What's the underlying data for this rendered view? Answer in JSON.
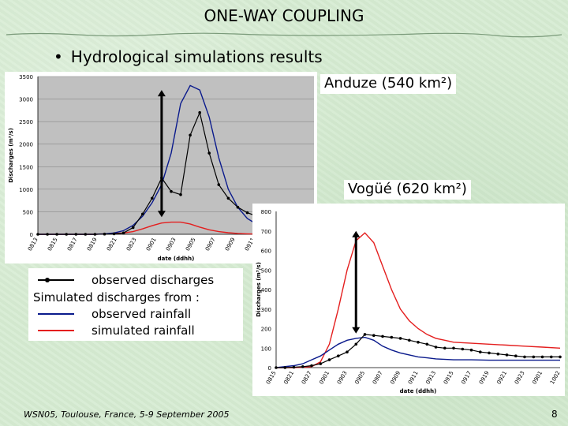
{
  "slide": {
    "title": "ONE-WAY COUPLING",
    "bullet": "Hydrological simulations results",
    "footer": "WSN05, Toulouse, France, 5-9 September 2005",
    "page_number": "8"
  },
  "legend": {
    "observed": "observed discharges",
    "header": "Simulated discharges from :",
    "obs_rainfall": "observed rainfall",
    "sim_rainfall": "simulated rainfall"
  },
  "colors": {
    "observed": "#000000",
    "obs_rainfall": "#0a1a8c",
    "sim_rainfall": "#e41e1e",
    "plot_bg": "#c0c0c0",
    "arrow": "#000000"
  },
  "chart_data": [
    {
      "type": "line",
      "title": "Anduze (540 km²)",
      "ylabel": "Discharges (m³/s)",
      "xlabel": "date (ddhh)",
      "ylim": [
        0,
        3500
      ],
      "yticks": [
        0,
        500,
        1000,
        1500,
        2000,
        2500,
        3000,
        3500
      ],
      "xticks": [
        "0813",
        "0815",
        "0817",
        "0819",
        "0821",
        "0823",
        "0901",
        "0903",
        "0905",
        "0907",
        "0909",
        "0911",
        "0913",
        "0915",
        "0917"
      ],
      "grid": true,
      "series": [
        {
          "role": "observed",
          "x": [
            0,
            1,
            2,
            3,
            4,
            5,
            6,
            7,
            8,
            9,
            10,
            11,
            12,
            13,
            14,
            15,
            16,
            17,
            18,
            19,
            20,
            21,
            22,
            23,
            24,
            25,
            26,
            27,
            28,
            29
          ],
          "y": [
            0,
            0,
            0,
            0,
            0,
            0,
            0,
            5,
            10,
            30,
            150,
            450,
            800,
            1250,
            950,
            880,
            2200,
            2700,
            1800,
            1100,
            800,
            600,
            480,
            400,
            360,
            330,
            310,
            295,
            285,
            280
          ]
        },
        {
          "role": "obs_rainfall",
          "x": [
            0,
            2,
            4,
            6,
            7,
            8,
            9,
            10,
            11,
            12,
            13,
            14,
            15,
            16,
            17,
            18,
            19,
            20,
            21,
            22,
            23,
            24,
            25,
            26,
            27,
            28,
            29
          ],
          "y": [
            0,
            0,
            0,
            0,
            10,
            30,
            80,
            200,
            400,
            700,
            1100,
            1800,
            2900,
            3300,
            3200,
            2600,
            1700,
            1000,
            600,
            350,
            220,
            150,
            100,
            80,
            70,
            60,
            55
          ]
        },
        {
          "role": "sim_rainfall",
          "x": [
            0,
            2,
            4,
            6,
            7,
            8,
            9,
            10,
            11,
            12,
            13,
            14,
            15,
            16,
            17,
            18,
            19,
            20,
            21,
            22,
            23,
            24,
            25,
            26,
            27,
            28,
            29
          ],
          "y": [
            0,
            0,
            0,
            0,
            10,
            20,
            30,
            60,
            120,
            190,
            250,
            270,
            270,
            230,
            160,
            100,
            60,
            35,
            20,
            10,
            5,
            0,
            0,
            0,
            0,
            0,
            0
          ]
        }
      ],
      "arrow": {
        "x": 13,
        "y_top": 3200,
        "y_bottom": 380
      }
    },
    {
      "type": "line",
      "title": "Vogüé (620 km²)",
      "ylabel": "Discharges (m³/s)",
      "xlabel": "date (ddhh)",
      "ylim": [
        0,
        800
      ],
      "yticks": [
        0,
        100,
        200,
        300,
        400,
        500,
        600,
        700,
        800
      ],
      "xticks": [
        "0815",
        "0821",
        "0827",
        "0901",
        "0903",
        "0905",
        "0907",
        "0909",
        "0911",
        "0913",
        "0915",
        "0917",
        "0919",
        "0921",
        "0923",
        "0901",
        "1002"
      ],
      "grid": false,
      "series": [
        {
          "role": "observed",
          "x": [
            0,
            1,
            2,
            3,
            4,
            5,
            6,
            7,
            8,
            9,
            10,
            11,
            12,
            13,
            14,
            15,
            16,
            17,
            18,
            19,
            20,
            21,
            22,
            23,
            24,
            25,
            26,
            27,
            28,
            29,
            30,
            31,
            32
          ],
          "y": [
            0,
            0,
            2,
            5,
            10,
            20,
            40,
            60,
            80,
            120,
            170,
            165,
            160,
            155,
            150,
            140,
            130,
            120,
            105,
            100,
            100,
            95,
            90,
            80,
            75,
            70,
            65,
            60,
            55,
            55,
            55,
            55,
            55
          ]
        },
        {
          "role": "obs_rainfall",
          "x": [
            0,
            2,
            3,
            4,
            5,
            6,
            7,
            8,
            9,
            10,
            11,
            12,
            13,
            14,
            15,
            16,
            17,
            18,
            20,
            22,
            24,
            26,
            28,
            30,
            32
          ],
          "y": [
            0,
            10,
            20,
            40,
            60,
            90,
            120,
            140,
            150,
            155,
            140,
            110,
            90,
            75,
            65,
            55,
            50,
            45,
            40,
            40,
            38,
            38,
            38,
            38,
            38
          ]
        },
        {
          "role": "sim_rainfall",
          "x": [
            0,
            2,
            4,
            5,
            6,
            7,
            8,
            9,
            10,
            11,
            12,
            13,
            14,
            15,
            16,
            17,
            18,
            19,
            20,
            22,
            24,
            26,
            28,
            30,
            32
          ],
          "y": [
            0,
            0,
            5,
            30,
            120,
            300,
            500,
            650,
            690,
            640,
            520,
            400,
            300,
            240,
            200,
            170,
            150,
            140,
            130,
            125,
            120,
            115,
            110,
            105,
            100
          ]
        }
      ],
      "arrow": {
        "x": 9,
        "y_top": 700,
        "y_bottom": 175
      }
    }
  ]
}
